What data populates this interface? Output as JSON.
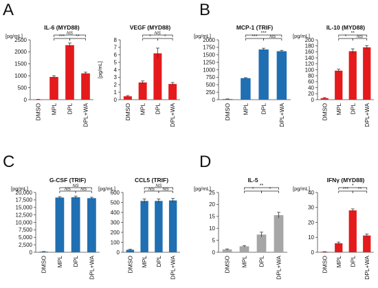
{
  "colors": {
    "red": "#e41a1c",
    "blue": "#1f6fb2",
    "gray": "#a6a6a6"
  },
  "panels": [
    {
      "letter": "A"
    },
    {
      "letter": "B"
    },
    {
      "letter": "C"
    },
    {
      "letter": "D"
    }
  ],
  "chart_data": [
    {
      "type": "bar",
      "panel": "A",
      "title": "IL-6 (MYD88)",
      "unit": "[pg/mL]",
      "unit_side": "top",
      "categories": [
        "DMSO",
        "MPL",
        "DPL",
        "DPL+WA"
      ],
      "values": [
        10,
        950,
        2280,
        1100
      ],
      "errors": [
        5,
        50,
        90,
        50
      ],
      "color": "red",
      "ylim": [
        0,
        2500
      ],
      "yticks": [
        0,
        500,
        1000,
        1500,
        2000,
        2500
      ],
      "ytick_labels": [
        "0",
        "500",
        "1000",
        "1500",
        "2000",
        "2500"
      ],
      "sig": [
        {
          "from": 1,
          "to": 2,
          "label": "***"
        },
        {
          "from": 2,
          "to": 3,
          "label": "**"
        },
        {
          "from": 1,
          "to": 3,
          "label": "NS"
        }
      ]
    },
    {
      "type": "bar",
      "panel": "A",
      "title": "VEGF (MYD88)",
      "unit": "[pg/mL]",
      "unit_side": "left",
      "categories": [
        "DMSO",
        "MPL",
        "DPL",
        "DPL+WA"
      ],
      "values": [
        0.45,
        2.3,
        6.2,
        2.1
      ],
      "errors": [
        0.1,
        0.2,
        0.7,
        0.2
      ],
      "color": "red",
      "ylim": [
        0,
        8
      ],
      "yticks": [
        0,
        1,
        2,
        3,
        4,
        5,
        6,
        7,
        8
      ],
      "ytick_labels": [
        "0",
        "1",
        "2",
        "3",
        "4",
        "5",
        "6",
        "7",
        "8"
      ],
      "sig": [
        {
          "from": 1,
          "to": 2,
          "label": "*"
        },
        {
          "from": 2,
          "to": 3,
          "label": "*"
        },
        {
          "from": 1,
          "to": 3,
          "label": "NS"
        }
      ]
    },
    {
      "type": "bar",
      "panel": "B",
      "title": "MCP-1 (TRIF)",
      "unit": "[pg/mL]",
      "unit_side": "top",
      "categories": [
        "DMSO",
        "MPL",
        "DPL",
        "DPL+WA"
      ],
      "values": [
        20,
        720,
        1680,
        1620
      ],
      "errors": [
        5,
        15,
        40,
        30
      ],
      "color": "blue",
      "ylim": [
        0,
        2000
      ],
      "yticks": [
        0,
        250,
        500,
        750,
        1000,
        1250,
        1500,
        1750,
        2000
      ],
      "ytick_labels": [
        "0",
        "250",
        "500",
        "750",
        "1000",
        "1250",
        "1500",
        "1750",
        "2000"
      ],
      "sig": [
        {
          "from": 1,
          "to": 2,
          "label": "***"
        },
        {
          "from": 2,
          "to": 3,
          "label": "NS"
        },
        {
          "from": 1,
          "to": 3,
          "label": "***"
        }
      ]
    },
    {
      "type": "bar",
      "panel": "B",
      "title": "IL-10 (MYD88)",
      "unit": "[pg/mL]",
      "unit_side": "top",
      "categories": [
        "DMSO",
        "MPL",
        "DPL",
        "DPL+WA"
      ],
      "values": [
        5,
        97,
        162,
        175
      ],
      "errors": [
        2,
        5,
        8,
        6
      ],
      "color": "red",
      "ylim": [
        0,
        200
      ],
      "yticks": [
        0,
        20,
        40,
        60,
        80,
        100,
        120,
        140,
        160,
        180,
        200
      ],
      "ytick_labels": [
        "0",
        "20",
        "40",
        "60",
        "80",
        "100",
        "120",
        "140",
        "160",
        "180",
        "200"
      ],
      "sig": [
        {
          "from": 1,
          "to": 2,
          "label": "*"
        },
        {
          "from": 2,
          "to": 3,
          "label": "NS"
        },
        {
          "from": 1,
          "to": 3,
          "label": "**"
        }
      ]
    },
    {
      "type": "bar",
      "panel": "C",
      "title": "G-CSF (TRIF)",
      "unit": "[pg/mL]",
      "unit_side": "top",
      "categories": [
        "DMSO",
        "MPL",
        "DPL",
        "DPL+WA"
      ],
      "values": [
        200,
        18300,
        18400,
        18100
      ],
      "errors": [
        50,
        300,
        400,
        300
      ],
      "color": "blue",
      "ylim": [
        0,
        20000
      ],
      "yticks": [
        0,
        2500,
        5000,
        7500,
        10000,
        12500,
        15000,
        17500,
        20000
      ],
      "ytick_labels": [
        "0",
        "2,500",
        "5,000",
        "7,500",
        "10,000",
        "12,500",
        "15,000",
        "17,500",
        "20,000"
      ],
      "sig": [
        {
          "from": 1,
          "to": 2,
          "label": "NS"
        },
        {
          "from": 2,
          "to": 3,
          "label": "NS"
        },
        {
          "from": 1,
          "to": 3,
          "label": "NS"
        }
      ]
    },
    {
      "type": "bar",
      "panel": "C",
      "title": "CCL5 (TRIF)",
      "unit": "[pg/mL]",
      "unit_side": "top",
      "categories": [
        "DMSO",
        "MPL",
        "DPL",
        "DPL+WA"
      ],
      "values": [
        25,
        515,
        515,
        520
      ],
      "errors": [
        5,
        20,
        20,
        20
      ],
      "color": "blue",
      "ylim": [
        0,
        600
      ],
      "yticks": [
        0,
        100,
        200,
        300,
        400,
        500,
        600
      ],
      "ytick_labels": [
        "0",
        "100",
        "200",
        "300",
        "400",
        "500",
        "600"
      ],
      "sig": [
        {
          "from": 1,
          "to": 2,
          "label": "NS"
        },
        {
          "from": 2,
          "to": 3,
          "label": "NS"
        },
        {
          "from": 1,
          "to": 3,
          "label": "NS"
        }
      ]
    },
    {
      "type": "bar",
      "panel": "D",
      "title": "IL-5",
      "unit": "[pg/mL]",
      "unit_side": "top",
      "categories": [
        "DMSO",
        "MPL",
        "DPL",
        "DPL+WA"
      ],
      "values": [
        1.2,
        2.5,
        7.4,
        15.5
      ],
      "errors": [
        0.2,
        0.3,
        1.0,
        1.2
      ],
      "color": "gray",
      "ylim": [
        0,
        25
      ],
      "yticks": [
        0,
        5,
        10,
        15,
        20,
        25
      ],
      "ytick_labels": [
        "0",
        "5",
        "10",
        "15",
        "20",
        "25"
      ],
      "sig": [
        {
          "from": 1,
          "to": 2,
          "label": "*"
        },
        {
          "from": 2,
          "to": 3,
          "label": "*"
        },
        {
          "from": 1,
          "to": 3,
          "label": "**"
        }
      ]
    },
    {
      "type": "bar",
      "panel": "D",
      "title": "IFNγ (MYD88)",
      "unit": "[pg/mL]",
      "unit_side": "top",
      "categories": [
        "DMSO",
        "MPL",
        "DPL",
        "DPL+WA"
      ],
      "values": [
        0.3,
        6.0,
        28.0,
        11.2
      ],
      "errors": [
        0.1,
        0.8,
        1.0,
        1.0
      ],
      "color": "red",
      "ylim": [
        0,
        40
      ],
      "yticks": [
        0,
        10,
        20,
        30,
        40
      ],
      "ytick_labels": [
        "0",
        "10",
        "20",
        "30",
        "40"
      ],
      "sig": [
        {
          "from": 1,
          "to": 2,
          "label": "***"
        },
        {
          "from": 2,
          "to": 3,
          "label": "**"
        },
        {
          "from": 1,
          "to": 3,
          "label": "*"
        }
      ]
    }
  ]
}
